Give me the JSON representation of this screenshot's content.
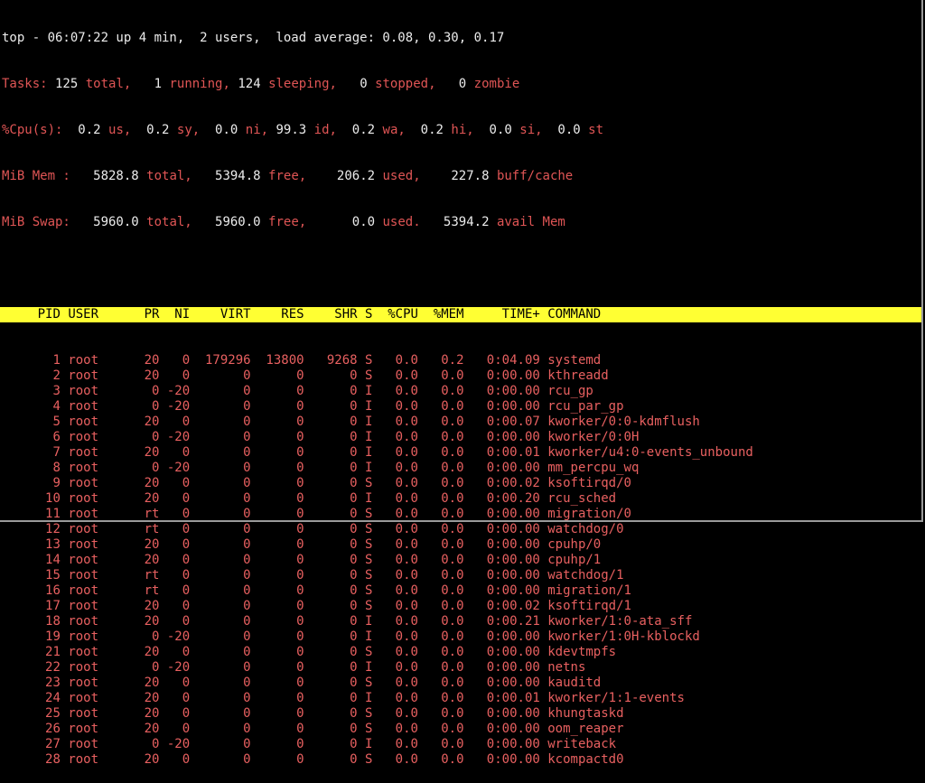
{
  "summary": {
    "uptime_line": "top - 06:07:22 up 4 min,  2 users,  load average: 0.08, 0.30, 0.17",
    "tasks": [
      {
        "k": "lbl",
        "t": "Tasks:"
      },
      {
        "k": "val",
        "t": " 125 "
      },
      {
        "k": "lbl",
        "t": "total,"
      },
      {
        "k": "val",
        "t": "   1 "
      },
      {
        "k": "lbl",
        "t": "running,"
      },
      {
        "k": "val",
        "t": " 124 "
      },
      {
        "k": "lbl",
        "t": "sleeping,"
      },
      {
        "k": "val",
        "t": "   0 "
      },
      {
        "k": "lbl",
        "t": "stopped,"
      },
      {
        "k": "val",
        "t": "   0 "
      },
      {
        "k": "lbl",
        "t": "zombie"
      }
    ],
    "cpu": [
      {
        "k": "lbl",
        "t": "%Cpu(s):"
      },
      {
        "k": "val",
        "t": "  0.2 "
      },
      {
        "k": "lbl",
        "t": "us,"
      },
      {
        "k": "val",
        "t": "  0.2 "
      },
      {
        "k": "lbl",
        "t": "sy,"
      },
      {
        "k": "val",
        "t": "  0.0 "
      },
      {
        "k": "lbl",
        "t": "ni,"
      },
      {
        "k": "val",
        "t": " 99.3 "
      },
      {
        "k": "lbl",
        "t": "id,"
      },
      {
        "k": "val",
        "t": "  0.2 "
      },
      {
        "k": "lbl",
        "t": "wa,"
      },
      {
        "k": "val",
        "t": "  0.2 "
      },
      {
        "k": "lbl",
        "t": "hi,"
      },
      {
        "k": "val",
        "t": "  0.0 "
      },
      {
        "k": "lbl",
        "t": "si,"
      },
      {
        "k": "val",
        "t": "  0.0 "
      },
      {
        "k": "lbl",
        "t": "st"
      }
    ],
    "mem": [
      {
        "k": "lbl",
        "t": "MiB Mem :"
      },
      {
        "k": "val",
        "t": "   5828.8 "
      },
      {
        "k": "lbl",
        "t": "total,"
      },
      {
        "k": "val",
        "t": "   5394.8 "
      },
      {
        "k": "lbl",
        "t": "free,"
      },
      {
        "k": "val",
        "t": "    206.2 "
      },
      {
        "k": "lbl",
        "t": "used,"
      },
      {
        "k": "val",
        "t": "    227.8 "
      },
      {
        "k": "lbl",
        "t": "buff/cache"
      }
    ],
    "swap": [
      {
        "k": "lbl",
        "t": "MiB Swap:"
      },
      {
        "k": "val",
        "t": "   5960.0 "
      },
      {
        "k": "lbl",
        "t": "total,"
      },
      {
        "k": "val",
        "t": "   5960.0 "
      },
      {
        "k": "lbl",
        "t": "free,"
      },
      {
        "k": "val",
        "t": "      0.0 "
      },
      {
        "k": "lbl",
        "t": "used."
      },
      {
        "k": "val",
        "t": "   5394.2 "
      },
      {
        "k": "lbl",
        "t": "avail Mem"
      }
    ]
  },
  "colors": {
    "label": "#e05555",
    "value": "#ececec",
    "header_bg": "#ffff33",
    "row": "#e86060",
    "background": "#000000"
  },
  "table": {
    "columns": [
      "PID",
      "USER",
      "PR",
      "NI",
      "VIRT",
      "RES",
      "SHR",
      "S",
      "%CPU",
      "%MEM",
      "TIME+",
      "COMMAND"
    ],
    "rows": [
      [
        "1",
        "root",
        "20",
        "0",
        "179296",
        "13800",
        "9268",
        "S",
        "0.0",
        "0.2",
        "0:04.09",
        "systemd"
      ],
      [
        "2",
        "root",
        "20",
        "0",
        "0",
        "0",
        "0",
        "S",
        "0.0",
        "0.0",
        "0:00.00",
        "kthreadd"
      ],
      [
        "3",
        "root",
        "0",
        "-20",
        "0",
        "0",
        "0",
        "I",
        "0.0",
        "0.0",
        "0:00.00",
        "rcu_gp"
      ],
      [
        "4",
        "root",
        "0",
        "-20",
        "0",
        "0",
        "0",
        "I",
        "0.0",
        "0.0",
        "0:00.00",
        "rcu_par_gp"
      ],
      [
        "5",
        "root",
        "20",
        "0",
        "0",
        "0",
        "0",
        "I",
        "0.0",
        "0.0",
        "0:00.07",
        "kworker/0:0-kdmflush"
      ],
      [
        "6",
        "root",
        "0",
        "-20",
        "0",
        "0",
        "0",
        "I",
        "0.0",
        "0.0",
        "0:00.00",
        "kworker/0:0H"
      ],
      [
        "7",
        "root",
        "20",
        "0",
        "0",
        "0",
        "0",
        "I",
        "0.0",
        "0.0",
        "0:00.01",
        "kworker/u4:0-events_unbound"
      ],
      [
        "8",
        "root",
        "0",
        "-20",
        "0",
        "0",
        "0",
        "I",
        "0.0",
        "0.0",
        "0:00.00",
        "mm_percpu_wq"
      ],
      [
        "9",
        "root",
        "20",
        "0",
        "0",
        "0",
        "0",
        "S",
        "0.0",
        "0.0",
        "0:00.02",
        "ksoftirqd/0"
      ],
      [
        "10",
        "root",
        "20",
        "0",
        "0",
        "0",
        "0",
        "I",
        "0.0",
        "0.0",
        "0:00.20",
        "rcu_sched"
      ],
      [
        "11",
        "root",
        "rt",
        "0",
        "0",
        "0",
        "0",
        "S",
        "0.0",
        "0.0",
        "0:00.00",
        "migration/0"
      ],
      [
        "12",
        "root",
        "rt",
        "0",
        "0",
        "0",
        "0",
        "S",
        "0.0",
        "0.0",
        "0:00.00",
        "watchdog/0"
      ],
      [
        "13",
        "root",
        "20",
        "0",
        "0",
        "0",
        "0",
        "S",
        "0.0",
        "0.0",
        "0:00.00",
        "cpuhp/0"
      ],
      [
        "14",
        "root",
        "20",
        "0",
        "0",
        "0",
        "0",
        "S",
        "0.0",
        "0.0",
        "0:00.00",
        "cpuhp/1"
      ],
      [
        "15",
        "root",
        "rt",
        "0",
        "0",
        "0",
        "0",
        "S",
        "0.0",
        "0.0",
        "0:00.00",
        "watchdog/1"
      ],
      [
        "16",
        "root",
        "rt",
        "0",
        "0",
        "0",
        "0",
        "S",
        "0.0",
        "0.0",
        "0:00.00",
        "migration/1"
      ],
      [
        "17",
        "root",
        "20",
        "0",
        "0",
        "0",
        "0",
        "S",
        "0.0",
        "0.0",
        "0:00.02",
        "ksoftirqd/1"
      ],
      [
        "18",
        "root",
        "20",
        "0",
        "0",
        "0",
        "0",
        "I",
        "0.0",
        "0.0",
        "0:00.21",
        "kworker/1:0-ata_sff"
      ],
      [
        "19",
        "root",
        "0",
        "-20",
        "0",
        "0",
        "0",
        "I",
        "0.0",
        "0.0",
        "0:00.00",
        "kworker/1:0H-kblockd"
      ],
      [
        "21",
        "root",
        "20",
        "0",
        "0",
        "0",
        "0",
        "S",
        "0.0",
        "0.0",
        "0:00.00",
        "kdevtmpfs"
      ],
      [
        "22",
        "root",
        "0",
        "-20",
        "0",
        "0",
        "0",
        "I",
        "0.0",
        "0.0",
        "0:00.00",
        "netns"
      ],
      [
        "23",
        "root",
        "20",
        "0",
        "0",
        "0",
        "0",
        "S",
        "0.0",
        "0.0",
        "0:00.00",
        "kauditd"
      ],
      [
        "24",
        "root",
        "20",
        "0",
        "0",
        "0",
        "0",
        "I",
        "0.0",
        "0.0",
        "0:00.01",
        "kworker/1:1-events"
      ],
      [
        "25",
        "root",
        "20",
        "0",
        "0",
        "0",
        "0",
        "S",
        "0.0",
        "0.0",
        "0:00.00",
        "khungtaskd"
      ],
      [
        "26",
        "root",
        "20",
        "0",
        "0",
        "0",
        "0",
        "S",
        "0.0",
        "0.0",
        "0:00.00",
        "oom_reaper"
      ],
      [
        "27",
        "root",
        "0",
        "-20",
        "0",
        "0",
        "0",
        "I",
        "0.0",
        "0.0",
        "0:00.00",
        "writeback"
      ],
      [
        "28",
        "root",
        "20",
        "0",
        "0",
        "0",
        "0",
        "S",
        "0.0",
        "0.0",
        "0:00.00",
        "kcompactd0"
      ]
    ]
  }
}
